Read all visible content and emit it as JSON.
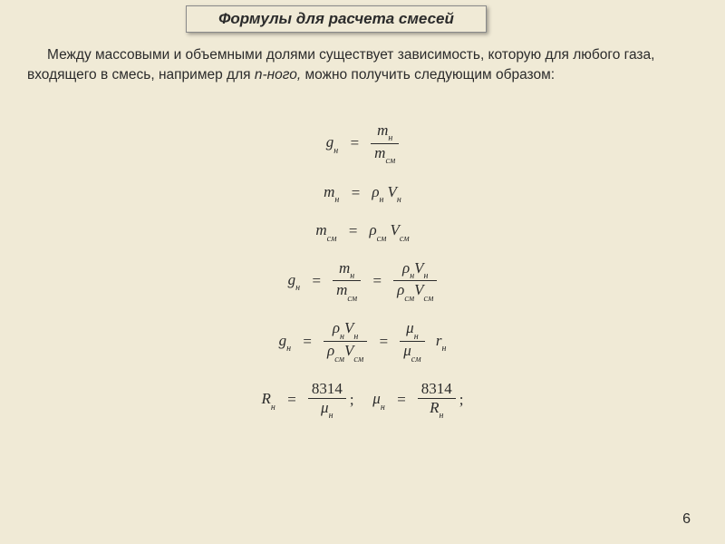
{
  "title": "Формулы для расчета смесей",
  "paragraph": {
    "part1": "Между массовыми и объемными долями существует зависимость, которую для любого газа, входящего в смесь, например для ",
    "nth": "n-ного,",
    "part2": " можно получить следующим образом:"
  },
  "symbols": {
    "g": "g",
    "m": "m",
    "V": "V",
    "rho": "ρ",
    "mu": "μ",
    "r": "r",
    "R": "R",
    "n": "н",
    "cm": "см",
    "eq": "=",
    "semi": ";"
  },
  "const": {
    "num8314": "8314"
  },
  "pageNumber": "6",
  "style": {
    "background": "#f0ead6",
    "titleFont": "italic bold 17px Arial",
    "bodyFont": "15.5px Arial",
    "mathFont": "17px Times New Roman",
    "textColor": "#2b2b2b",
    "titleBorder": "#8a8a8a"
  }
}
